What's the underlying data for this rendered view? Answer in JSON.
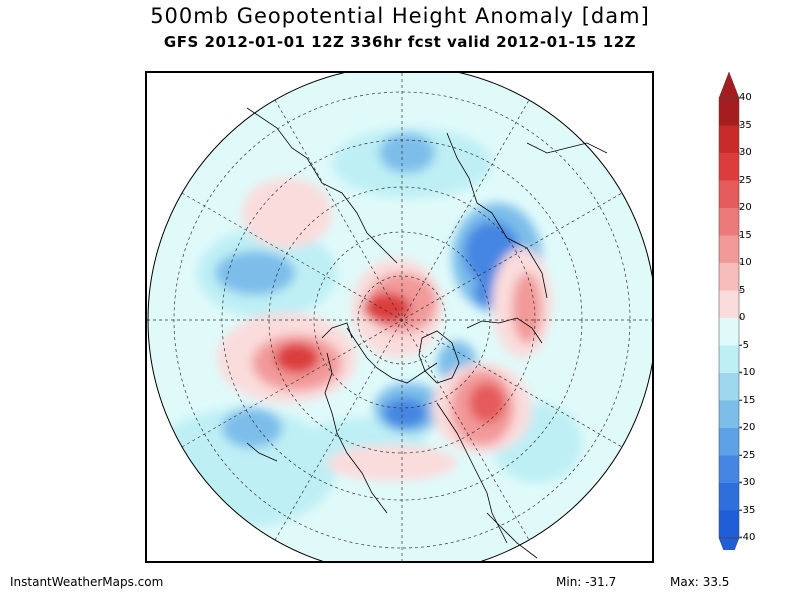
{
  "title": "500mb Geopotential Height Anomaly [dam]",
  "subtitle": "GFS 2012-01-01 12Z 336hr fcst valid 2012-01-15 12Z",
  "footer": {
    "site": "InstantWeatherMaps.com",
    "min_label": "Min:",
    "min_value": "-31.7",
    "max_label": "Max:",
    "max_value": "33.5"
  },
  "colorbar": {
    "labels": [
      "40",
      "35",
      "30",
      "25",
      "20",
      "15",
      "10",
      "5",
      "0",
      "-5",
      "-10",
      "-15",
      "-20",
      "-25",
      "-30",
      "-35",
      "-40"
    ],
    "colors": [
      "#a51d1f",
      "#c92a2a",
      "#dc3c3c",
      "#e55a5a",
      "#ec7a7a",
      "#f29a9a",
      "#f7bcbc",
      "#fbdcdc",
      "#e0fafa",
      "#bdeff5",
      "#9dd8ef",
      "#7cbdea",
      "#5da1e6",
      "#4486e2",
      "#2f6fdc",
      "#1f5ed6"
    ]
  },
  "map": {
    "projection": "north-polar-stereographic",
    "colors": {
      "ocean_base": "#e0fafa",
      "light_blue": "#bdeff5",
      "mid_blue": "#7cbdea",
      "deep_blue": "#4486e2",
      "light_red": "#fbdcdc",
      "mid_red": "#f29a9a",
      "deep_red": "#dc3c3c"
    }
  }
}
